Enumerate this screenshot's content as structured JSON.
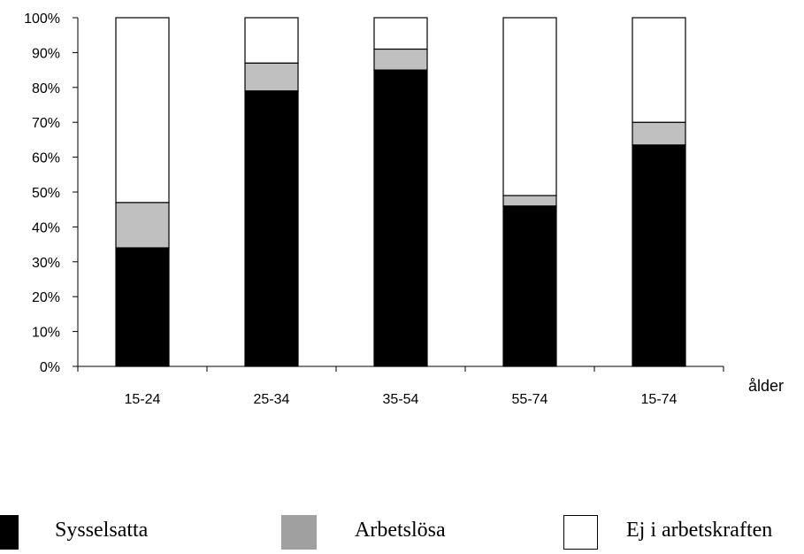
{
  "chart_data": {
    "type": "bar",
    "stacked": true,
    "categories": [
      "15-24",
      "25-34",
      "35-54",
      "55-74",
      "15-74"
    ],
    "series": [
      {
        "name": "Sysselsatta",
        "values": [
          34,
          79,
          85,
          46,
          63.5
        ],
        "color": "#000000"
      },
      {
        "name": "Arbetslösa",
        "values": [
          13,
          8,
          6,
          3,
          6.5
        ],
        "color": "#c0c0c0"
      },
      {
        "name": "Ej i arbetskraften",
        "values": [
          53,
          13,
          9,
          51,
          30
        ],
        "color": "#ffffff"
      }
    ],
    "title": "",
    "xlabel": "ålder",
    "ylabel": "",
    "ylim": [
      0,
      100
    ],
    "yticks": [
      "0%",
      "10%",
      "20%",
      "30%",
      "40%",
      "50%",
      "60%",
      "70%",
      "80%",
      "90%",
      "100%"
    ],
    "grid": false,
    "legend_position": "bottom"
  },
  "legend": {
    "items": [
      {
        "label": "Sysselsatta",
        "color": "#000000"
      },
      {
        "label": "Arbetslösa",
        "color": "#a0a0a0"
      },
      {
        "label": "Ej i arbetskraften",
        "color": "#ffffff"
      }
    ]
  }
}
